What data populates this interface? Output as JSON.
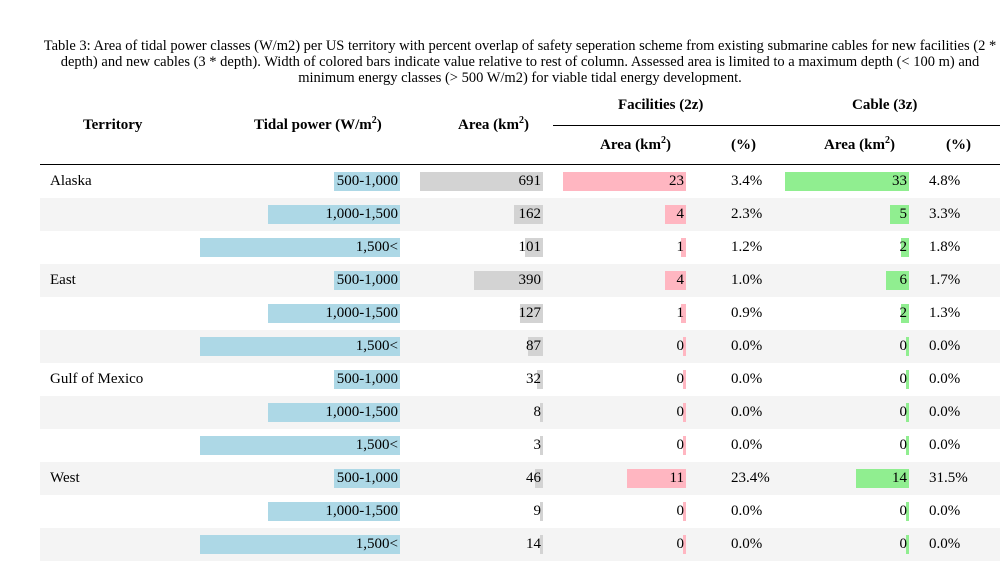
{
  "caption": "Table 3: Area of tidal power classes (W/m2) per US territory with percent overlap of safety seperation scheme from existing submarine cables for new facilities (2 * depth) and new cables (3 * depth). Width of colored bars indicate value relative to rest of column. Assessed area is limited to a maximum depth (< 100 m) and minimum energy classes (> 500 W/m2) for viable tidal energy development.",
  "headers": {
    "territory": "Territory",
    "tidal_power": "Tidal power (W/m",
    "tidal_power_sup": "2",
    "tidal_power_end": ")",
    "area": "Area (km",
    "area_sup": "2",
    "area_end": ")",
    "facilities_group": "Facilities (2z)",
    "cable_group": "Cable (3z)",
    "fac_area": "Area (km",
    "fac_area_sup": "2",
    "fac_area_end": ")",
    "fac_pct": "(%)",
    "cab_area": "Area (km",
    "cab_area_sup": "2",
    "cab_area_end": ")",
    "cab_pct": "(%)"
  },
  "colors": {
    "tidal_bar": "#add8e6",
    "area_bar": "#d3d3d3",
    "facilities_bar": "#ffb6c1",
    "cable_bar": "#90ee90",
    "stripe": "#f4f4f4"
  },
  "rows": [
    {
      "territory": "Alaska",
      "tidal": "500-1,000",
      "tidal_frac": 0.33,
      "area": "691",
      "area_frac": 1.0,
      "fac_area": "23",
      "fac_frac": 1.0,
      "fac_pct": "3.4%",
      "cab_area": "33",
      "cab_frac": 1.0,
      "cab_pct": "4.8%"
    },
    {
      "territory": "",
      "tidal": "1,000-1,500",
      "tidal_frac": 0.66,
      "area": "162",
      "area_frac": 0.234,
      "fac_area": "4",
      "fac_frac": 0.174,
      "fac_pct": "2.3%",
      "cab_area": "5",
      "cab_frac": 0.152,
      "cab_pct": "3.3%"
    },
    {
      "territory": "",
      "tidal": "1,500<",
      "tidal_frac": 1.0,
      "area": "101",
      "area_frac": 0.146,
      "fac_area": "1",
      "fac_frac": 0.043,
      "fac_pct": "1.2%",
      "cab_area": "2",
      "cab_frac": 0.061,
      "cab_pct": "1.8%"
    },
    {
      "territory": "East",
      "tidal": "500-1,000",
      "tidal_frac": 0.33,
      "area": "390",
      "area_frac": 0.564,
      "fac_area": "4",
      "fac_frac": 0.174,
      "fac_pct": "1.0%",
      "cab_area": "6",
      "cab_frac": 0.182,
      "cab_pct": "1.7%"
    },
    {
      "territory": "",
      "tidal": "1,000-1,500",
      "tidal_frac": 0.66,
      "area": "127",
      "area_frac": 0.184,
      "fac_area": "1",
      "fac_frac": 0.043,
      "fac_pct": "0.9%",
      "cab_area": "2",
      "cab_frac": 0.061,
      "cab_pct": "1.3%"
    },
    {
      "territory": "",
      "tidal": "1,500<",
      "tidal_frac": 1.0,
      "area": "87",
      "area_frac": 0.126,
      "fac_area": "0",
      "fac_frac": 0.0,
      "fac_pct": "0.0%",
      "cab_area": "0",
      "cab_frac": 0.0,
      "cab_pct": "0.0%"
    },
    {
      "territory": "Gulf of Mexico",
      "tidal": "500-1,000",
      "tidal_frac": 0.33,
      "area": "32",
      "area_frac": 0.046,
      "fac_area": "0",
      "fac_frac": 0.0,
      "fac_pct": "0.0%",
      "cab_area": "0",
      "cab_frac": 0.0,
      "cab_pct": "0.0%"
    },
    {
      "territory": "",
      "tidal": "1,000-1,500",
      "tidal_frac": 0.66,
      "area": "8",
      "area_frac": 0.012,
      "fac_area": "0",
      "fac_frac": 0.0,
      "fac_pct": "0.0%",
      "cab_area": "0",
      "cab_frac": 0.0,
      "cab_pct": "0.0%"
    },
    {
      "territory": "",
      "tidal": "1,500<",
      "tidal_frac": 1.0,
      "area": "3",
      "area_frac": 0.004,
      "fac_area": "0",
      "fac_frac": 0.0,
      "fac_pct": "0.0%",
      "cab_area": "0",
      "cab_frac": 0.0,
      "cab_pct": "0.0%"
    },
    {
      "territory": "West",
      "tidal": "500-1,000",
      "tidal_frac": 0.33,
      "area": "46",
      "area_frac": 0.067,
      "fac_area": "11",
      "fac_frac": 0.478,
      "fac_pct": "23.4%",
      "cab_area": "14",
      "cab_frac": 0.424,
      "cab_pct": "31.5%"
    },
    {
      "territory": "",
      "tidal": "1,000-1,500",
      "tidal_frac": 0.66,
      "area": "9",
      "area_frac": 0.013,
      "fac_area": "0",
      "fac_frac": 0.0,
      "fac_pct": "0.0%",
      "cab_area": "0",
      "cab_frac": 0.0,
      "cab_pct": "0.0%"
    },
    {
      "territory": "",
      "tidal": "1,500<",
      "tidal_frac": 1.0,
      "area": "14",
      "area_frac": 0.02,
      "fac_area": "0",
      "fac_frac": 0.0,
      "fac_pct": "0.0%",
      "cab_area": "0",
      "cab_frac": 0.0,
      "cab_pct": "0.0%"
    }
  ]
}
